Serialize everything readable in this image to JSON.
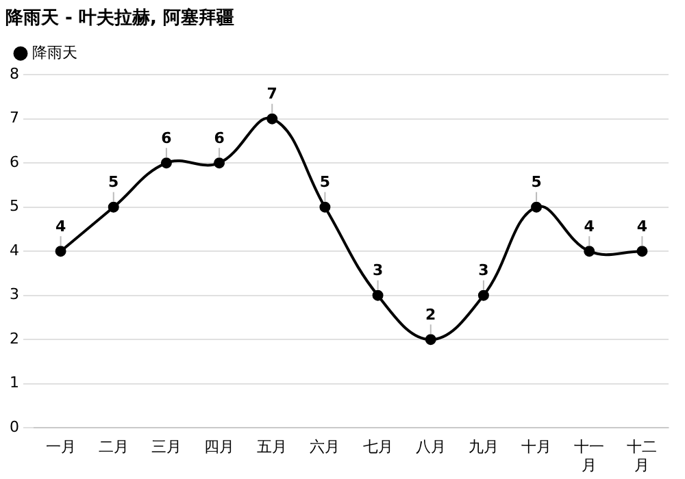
{
  "chart_data": {
    "type": "line",
    "title": "降雨天 - 叶夫拉赫, 阿塞拜疆",
    "categories": [
      "一月",
      "二月",
      "三月",
      "四月",
      "五月",
      "六月",
      "七月",
      "八月",
      "九月",
      "十月",
      "十一月",
      "十二月"
    ],
    "series": [
      {
        "name": "降雨天",
        "color": "#000000",
        "values": [
          4,
          5,
          6,
          6,
          7,
          5,
          3,
          2,
          3,
          5,
          4,
          4
        ]
      }
    ],
    "ylim": [
      0,
      8
    ],
    "yticks": [
      0,
      1,
      2,
      3,
      4,
      5,
      6,
      7,
      8
    ],
    "grid": "y",
    "legend": "top left",
    "marker": "circle",
    "line_style": "solid",
    "data_labels": true
  }
}
